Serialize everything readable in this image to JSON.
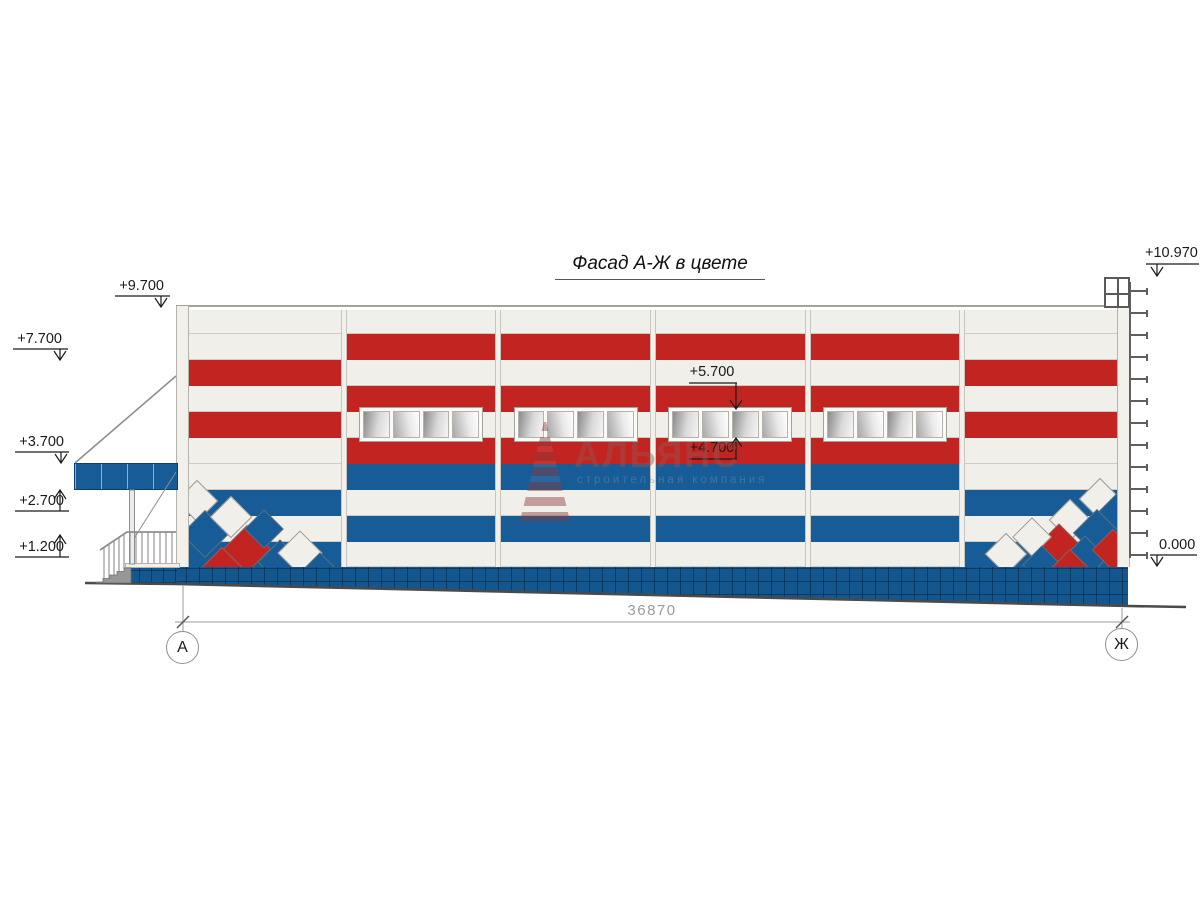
{
  "drawing": {
    "title": "Фасад А-Ж в цвете",
    "total_dimension": "36870",
    "axes": {
      "left": "А",
      "right": "Ж"
    },
    "elevations": {
      "parapet_left": "+9.700",
      "wall_band_left": "+7.700",
      "canopy_top": "+3.700",
      "canopy_bottom": "+2.700",
      "porch_landing": "+1.200",
      "ladder_top": "+10.970",
      "window_head": "+5.700",
      "window_sill": "+4.700",
      "ground_level": "0.000"
    }
  },
  "watermark": {
    "name": "АЛЬЯНС",
    "subtitle": "строительная компания"
  },
  "colors": {
    "red": "#c22521",
    "blue": "#175c96",
    "panel": "#f0efe9",
    "plinth_blue": "#14568e",
    "line_gray": "#8e8e8e",
    "ground_dark": "#4a4a4a",
    "dim_gray": "#9a9a9a",
    "text_black": "#1a1a1a"
  },
  "facade": {
    "bay_count": 6,
    "stripe_rows_middle_bays": [
      "panel",
      "red",
      "panel",
      "red",
      "window_band",
      "red",
      "blue",
      "panel",
      "blue",
      "panel"
    ],
    "stripe_rows_outer_bays": [
      "panel",
      "panel",
      "red",
      "panel",
      "red",
      "panel",
      "panel",
      "blue",
      "panel",
      "blue"
    ],
    "window_bays": [
      2,
      3,
      4,
      5
    ],
    "panes_per_window": 4,
    "corner_diamond_colors": [
      "panel",
      "blue",
      "red"
    ]
  }
}
